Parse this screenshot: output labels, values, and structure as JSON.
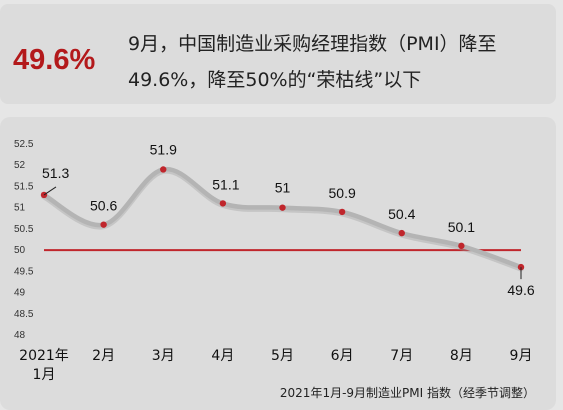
{
  "header": {
    "big_value": "49.6%",
    "headline_line1": "9月，中国制造业采购经理指数（PMI）降至",
    "headline_line2": "49.6%，降至50%的“荣枯线”以下"
  },
  "chart_data": {
    "type": "line",
    "title": "",
    "caption": "2021年1月-9月制造业PMI 指数（经季节调整）",
    "categories": [
      "2021年1月",
      "2月",
      "3月",
      "4月",
      "5月",
      "6月",
      "7月",
      "8月",
      "9月"
    ],
    "category_labels": [
      [
        "2021年",
        "1月"
      ],
      [
        "2月"
      ],
      [
        "3月"
      ],
      [
        "4月"
      ],
      [
        "5月"
      ],
      [
        "6月"
      ],
      [
        "7月"
      ],
      [
        "8月"
      ],
      [
        "9月"
      ]
    ],
    "values": [
      51.3,
      50.6,
      51.9,
      51.1,
      51,
      50.9,
      50.4,
      50.1,
      49.6
    ],
    "data_labels": [
      "51.3",
      "50.6",
      "51.9",
      "51.1",
      "51",
      "50.9",
      "50.4",
      "50.1",
      "49.6"
    ],
    "ylim": [
      48,
      52.5
    ],
    "yticks": [
      "48",
      "48.5",
      "49",
      "49.5",
      "50",
      "50.5",
      "51",
      "51.5",
      "52",
      "52.5"
    ],
    "reference_line": {
      "value": 50,
      "color": "#c0262c"
    },
    "line_color": "#b4b4b4",
    "marker_color": "#c0262c",
    "xlabel": "",
    "ylabel": "",
    "grid": false
  }
}
